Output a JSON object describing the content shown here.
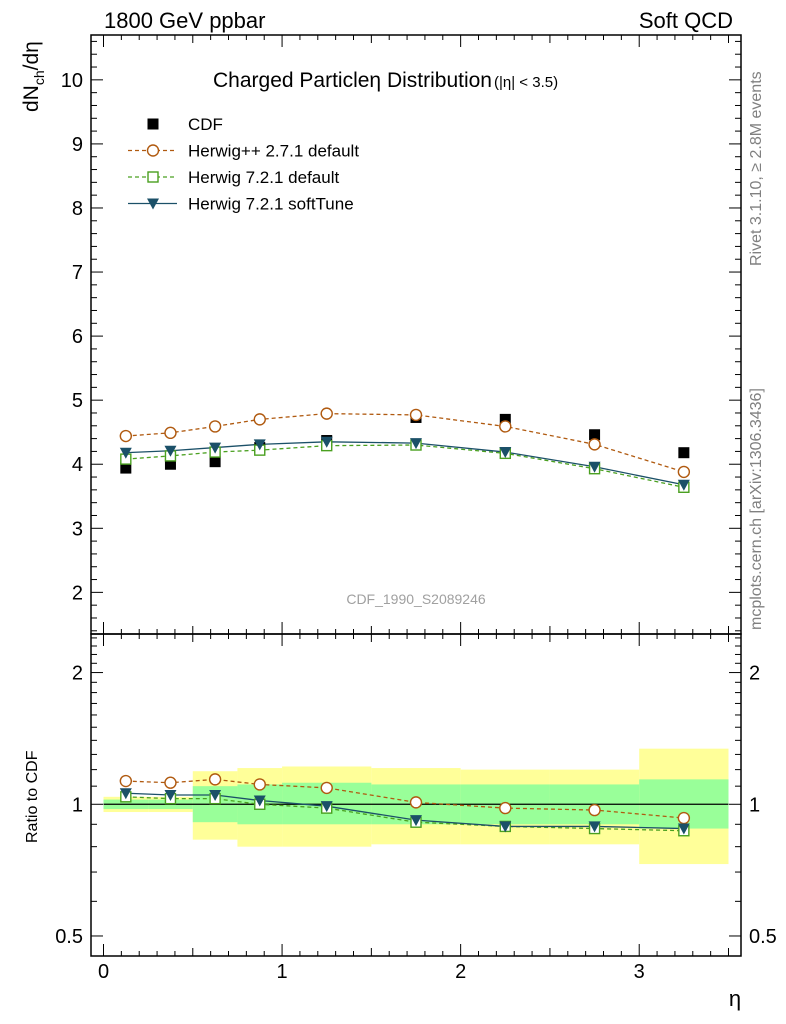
{
  "header": {
    "left": "1800 GeV ppbar",
    "right": "Soft QCD"
  },
  "side_labels": {
    "top": "Rivet 3.1.10, ≥ 2.8M events",
    "bottom": "mcplots.cern.ch [arXiv:1306.3436]"
  },
  "watermark": "CDF_1990_S2089246",
  "chart_data": [
    {
      "panel": "main",
      "type": "line",
      "title_main": "Charged Particle",
      "title_eta": "η",
      "title_rest": " Distribution",
      "title_cut": "(|η| < 3.5)",
      "ylabel": "dN",
      "ylabel_sub": "ch",
      "ylabel_tail": "/dη",
      "ylim": [
        1.35,
        10.7
      ],
      "xlim": [
        -0.07,
        3.57
      ],
      "yticks": [
        2,
        3,
        4,
        5,
        6,
        7,
        8,
        9,
        10
      ],
      "ytick_labels": [
        "2",
        "3",
        "4",
        "5",
        "6",
        "7",
        "8",
        "9",
        "10"
      ],
      "legend_position": "top-left",
      "x": [
        0.125,
        0.375,
        0.625,
        0.875,
        1.25,
        1.75,
        2.25,
        2.75,
        3.25
      ],
      "series": [
        {
          "name": "CDF",
          "style": "data",
          "color": "#000000",
          "values": [
            3.94,
            4.0,
            4.04,
            4.26,
            4.37,
            4.73,
            4.7,
            4.46,
            4.18
          ]
        },
        {
          "name": "Herwig++ 2.7.1 default",
          "style": "circle-dashed",
          "color": "#b05a10",
          "values": [
            4.44,
            4.49,
            4.59,
            4.7,
            4.79,
            4.77,
            4.59,
            4.31,
            3.88
          ]
        },
        {
          "name": "Herwig 7.2.1 default",
          "style": "square-dashed",
          "color": "#4aa020",
          "values": [
            4.08,
            4.13,
            4.19,
            4.22,
            4.29,
            4.3,
            4.17,
            3.93,
            3.64
          ]
        },
        {
          "name": "Herwig 7.2.1 softTune",
          "style": "triangle-solid",
          "color": "#1b5068",
          "values": [
            4.18,
            4.21,
            4.26,
            4.31,
            4.35,
            4.33,
            4.19,
            3.96,
            3.68
          ]
        }
      ]
    },
    {
      "panel": "ratio",
      "type": "line",
      "ylabel": "Ratio to CDF",
      "ylim": [
        0.45,
        2.45
      ],
      "xlim": [
        -0.07,
        3.57
      ],
      "yscale": "log",
      "yticks": [
        0.5,
        1,
        2
      ],
      "ytick_labels": [
        "0.5",
        "1",
        "2"
      ],
      "xticks": [
        0,
        1,
        2,
        3
      ],
      "xtick_labels": [
        "0",
        "1",
        "2",
        "3"
      ],
      "xlabel": "η",
      "bins": [
        [
          0,
          0.25
        ],
        [
          0.25,
          0.5
        ],
        [
          0.5,
          0.75
        ],
        [
          0.75,
          1.0
        ],
        [
          1.0,
          1.5
        ],
        [
          1.5,
          2.0
        ],
        [
          2.0,
          2.5
        ],
        [
          2.5,
          3.0
        ],
        [
          3.0,
          3.5
        ]
      ],
      "band_inner": [
        [
          0.975,
          1.025
        ],
        [
          0.975,
          1.025
        ],
        [
          0.91,
          1.1
        ],
        [
          0.9,
          1.11
        ],
        [
          0.9,
          1.12
        ],
        [
          0.9,
          1.11
        ],
        [
          0.9,
          1.11
        ],
        [
          0.9,
          1.11
        ],
        [
          0.88,
          1.14
        ]
      ],
      "band_outer": [
        [
          0.96,
          1.04
        ],
        [
          0.96,
          1.04
        ],
        [
          0.83,
          1.19
        ],
        [
          0.8,
          1.21
        ],
        [
          0.8,
          1.22
        ],
        [
          0.81,
          1.21
        ],
        [
          0.81,
          1.2
        ],
        [
          0.81,
          1.2
        ],
        [
          0.73,
          1.34
        ]
      ],
      "x": [
        0.125,
        0.375,
        0.625,
        0.875,
        1.25,
        1.75,
        2.25,
        2.75,
        3.25
      ],
      "series": [
        {
          "name": "Herwig++ 2.7.1 default",
          "style": "circle-dashed",
          "color": "#b05a10",
          "values": [
            1.13,
            1.12,
            1.14,
            1.11,
            1.09,
            1.01,
            0.98,
            0.97,
            0.93
          ]
        },
        {
          "name": "Herwig 7.2.1 default",
          "style": "square-dashed",
          "color": "#4aa020",
          "values": [
            1.04,
            1.03,
            1.03,
            1.0,
            0.98,
            0.91,
            0.89,
            0.88,
            0.87
          ]
        },
        {
          "name": "Herwig 7.2.1 softTune",
          "style": "triangle-solid",
          "color": "#1b5068",
          "values": [
            1.06,
            1.05,
            1.05,
            1.02,
            0.99,
            0.92,
            0.89,
            0.89,
            0.88
          ]
        }
      ]
    }
  ]
}
